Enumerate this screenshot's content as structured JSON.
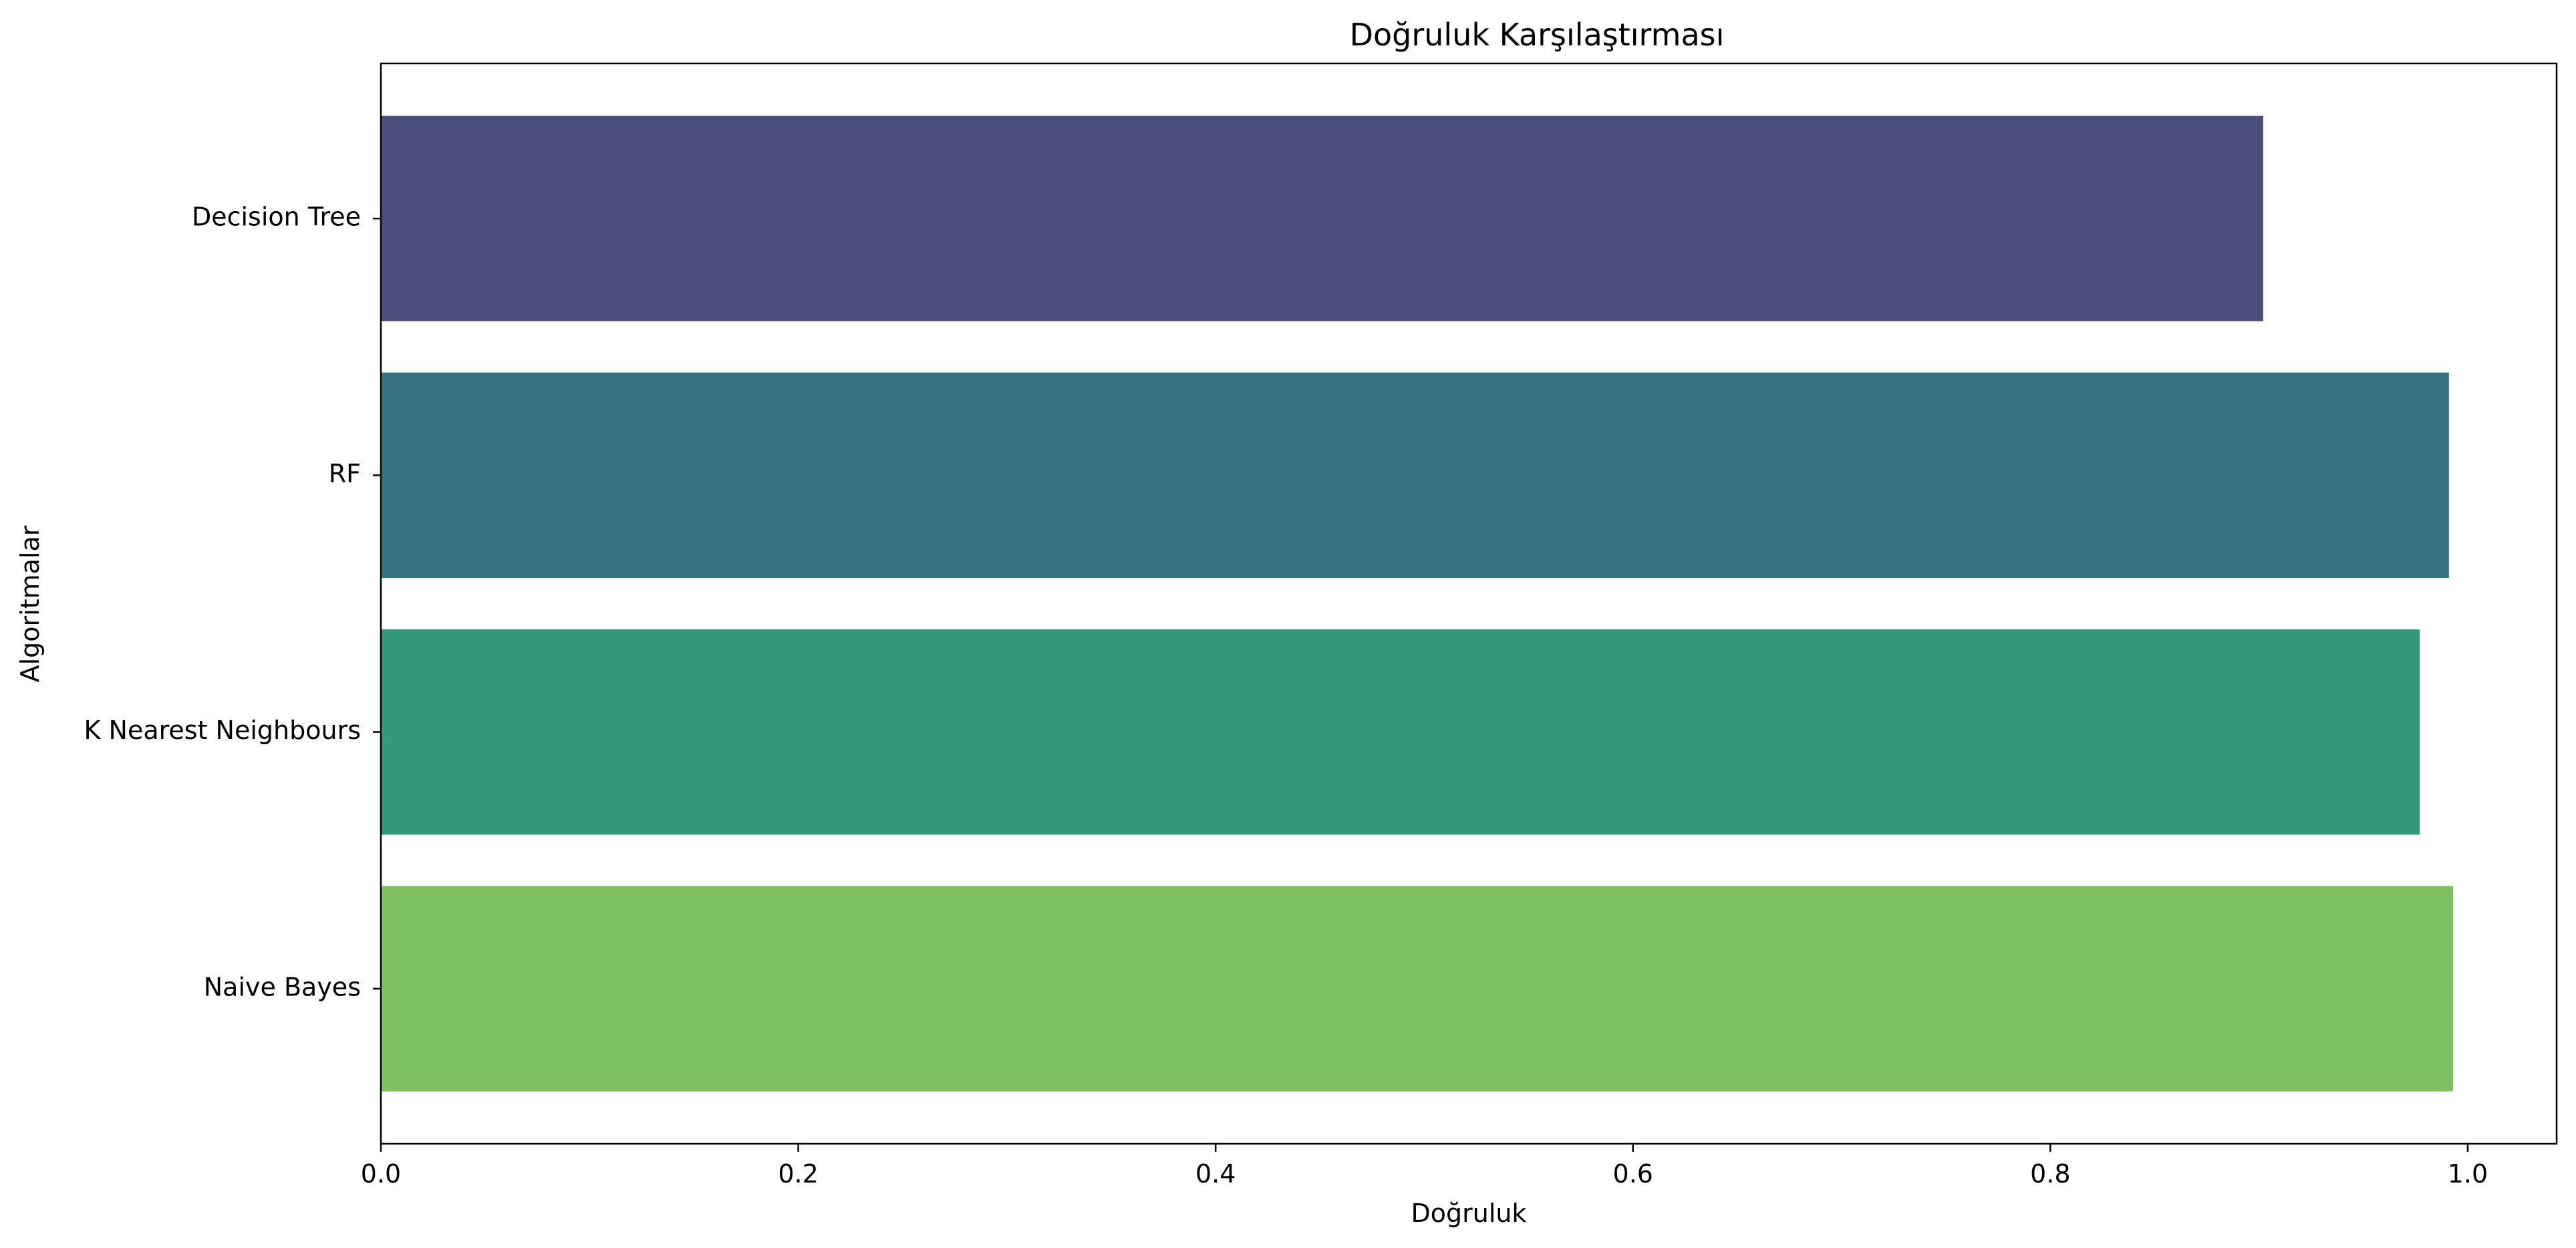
{
  "chart_data": {
    "type": "bar",
    "orientation": "horizontal",
    "title": "Doğruluk Karşılaştırması",
    "xlabel": "Doğruluk",
    "ylabel": "Algoritmalar",
    "categories": [
      "Decision Tree",
      "RF",
      "K Nearest Neighbours",
      "Naive Bayes"
    ],
    "values": [
      0.902,
      0.991,
      0.977,
      0.993
    ],
    "colors": [
      "#4b4d7d",
      "#367180",
      "#35977c",
      "#80c263"
    ],
    "xlim": [
      0,
      1.0426
    ],
    "xticks": [
      0.0,
      0.2,
      0.4,
      0.6,
      0.8,
      1.0
    ],
    "xtick_labels": [
      "0.0",
      "0.2",
      "0.4",
      "0.6",
      "0.8",
      "1.0"
    ],
    "grid": false,
    "legend": "none"
  }
}
